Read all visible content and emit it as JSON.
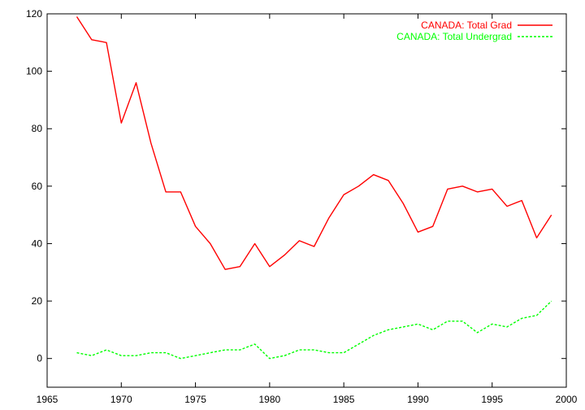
{
  "chart_data": {
    "type": "line",
    "title": "",
    "xlabel": "",
    "ylabel": "",
    "xlim": [
      1965,
      2000
    ],
    "ylim": [
      -10,
      120
    ],
    "xticks": [
      1965,
      1970,
      1975,
      1980,
      1985,
      1990,
      1995,
      2000
    ],
    "yticks": [
      0,
      20,
      40,
      60,
      80,
      100,
      120
    ],
    "grid": false,
    "legend": "top-right",
    "x": [
      1967,
      1968,
      1969,
      1970,
      1971,
      1972,
      1973,
      1974,
      1975,
      1976,
      1977,
      1978,
      1979,
      1980,
      1981,
      1982,
      1983,
      1984,
      1985,
      1986,
      1987,
      1988,
      1989,
      1990,
      1991,
      1992,
      1993,
      1994,
      1995,
      1996,
      1997,
      1998,
      1999
    ],
    "series": [
      {
        "name": "CANADA: Total Grad",
        "color": "#ff0000",
        "dash": "solid",
        "values": [
          119,
          111,
          110,
          82,
          96,
          75,
          58,
          58,
          46,
          40,
          31,
          32,
          40,
          32,
          36,
          41,
          39,
          49,
          57,
          60,
          64,
          62,
          54,
          44,
          46,
          59,
          60,
          58,
          59,
          53,
          55,
          42,
          50
        ]
      },
      {
        "name": "CANADA: Total Undergrad",
        "color": "#00ff00",
        "dash": "dashed",
        "values": [
          2,
          1,
          3,
          1,
          1,
          2,
          2,
          0,
          1,
          2,
          3,
          3,
          5,
          0,
          1,
          3,
          3,
          2,
          2,
          5,
          8,
          10,
          11,
          12,
          10,
          13,
          13,
          9,
          12,
          11,
          14,
          15,
          20
        ]
      }
    ]
  }
}
